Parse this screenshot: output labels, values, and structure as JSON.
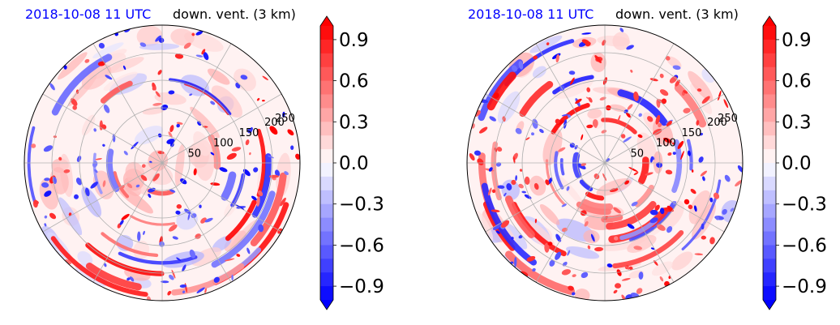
{
  "panels": [
    {
      "date_title": "2018-10-08 11 UTC",
      "var_title": "down. vent. (3 km)",
      "ring_labels": [
        "50",
        "100",
        "150",
        "200",
        "250"
      ],
      "colorbar_ticks": [
        "0.9",
        "0.6",
        "0.3",
        "0.0",
        "−0.3",
        "−0.6",
        "−0.9"
      ]
    },
    {
      "date_title": "2018-10-08 11 UTC",
      "var_title": "down. vent. (3 km)",
      "ring_labels": [
        "50",
        "100",
        "150",
        "200",
        "250"
      ],
      "colorbar_ticks": [
        "0.9",
        "0.6",
        "0.3",
        "0.0",
        "−0.3",
        "−0.6",
        "−0.9"
      ]
    }
  ],
  "chart_data": [
    {
      "type": "heatmap",
      "projection": "polar",
      "title": "2018-10-08 11 UTC  down. vent. (3 km)",
      "radial_ticks": [
        50,
        100,
        150,
        200,
        250
      ],
      "colorbar": {
        "min": -1.0,
        "max": 1.0,
        "ticks": [
          0.9,
          0.6,
          0.3,
          0.0,
          -0.3,
          -0.6,
          -0.9
        ],
        "colors": {
          "negative": "#0000ff",
          "zero": "#ffffff",
          "positive": "#ff0000"
        },
        "extend": "both"
      },
      "grid": true
    },
    {
      "type": "heatmap",
      "projection": "polar",
      "title": "2018-10-08 11 UTC  down. vent. (3 km)",
      "radial_ticks": [
        50,
        100,
        150,
        200,
        250
      ],
      "colorbar": {
        "min": -1.0,
        "max": 1.0,
        "ticks": [
          0.9,
          0.6,
          0.3,
          0.0,
          -0.3,
          -0.6,
          -0.9
        ],
        "colors": {
          "negative": "#0000ff",
          "zero": "#ffffff",
          "positive": "#ff0000"
        },
        "extend": "both"
      },
      "grid": true
    }
  ]
}
